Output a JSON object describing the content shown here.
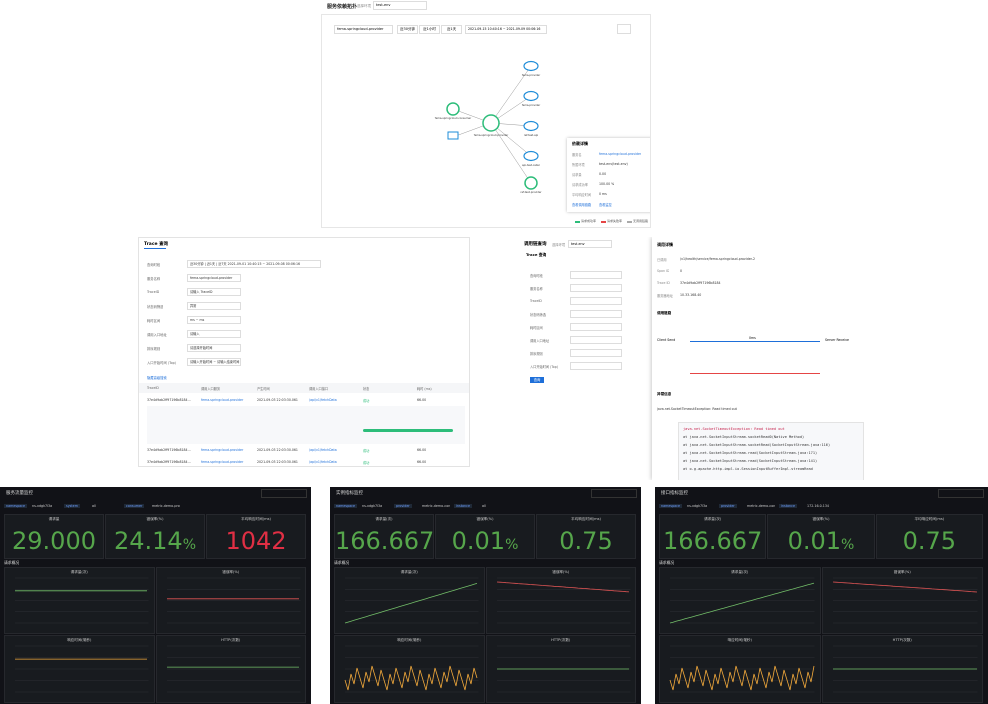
{
  "topology": {
    "title": "服务依赖拓扑",
    "env_label": "选择环境",
    "env": "test-env",
    "service": "fema-springcloud-provider",
    "ranges": [
      "近30分钟",
      "近1小时",
      "近1天"
    ],
    "time": "2021-09-15 10:40:16 ~ 2021-09-09 00:06:16",
    "nodes": [
      "fema-springcloud-consumer",
      "fema-springcloud-provider",
      "fema-provider",
      "fema-provider",
      "ref-test-api",
      "api-test-caller",
      "ref-test-provider"
    ],
    "detail": {
      "title": "依赖详情",
      "rows": [
        [
          "服务名",
          "fema-springcloud-provider"
        ],
        [
          "所属环境",
          "test-env(test-env)"
        ],
        [
          "请求量",
          "0.00"
        ],
        [
          "请求成功率",
          "100.00 %"
        ],
        [
          "平均响应时间",
          "0 ms"
        ]
      ],
      "actions": [
        "查看调用链路",
        "查看监控"
      ]
    },
    "legend": [
      "请求成功率",
      "请求失败率",
      "无调用链路"
    ]
  },
  "trace": {
    "title": "Trace 查询",
    "form": [
      [
        "查询时段",
        "近30分钟 | 近1天 | 近7天   2021-09-01 10:40:15 ~ 2021-09-08 00:06:16"
      ],
      [
        "服务名称",
        "fema-springcloud-provider"
      ],
      [
        "TraceID",
        "请输入 TraceID"
      ],
      [
        "状态码筛选",
        "异常"
      ],
      [
        "耗时区间",
        "ms ~ ms"
      ],
      [
        "调用入口地址",
        "请输入"
      ],
      [
        "排序规则",
        "请选择开始时间"
      ],
      [
        "入口开始时间 (Top)",
        "请输入开始时间  ~  请输入结束时间"
      ]
    ],
    "link": "隐藏高级搜索",
    "submit": "查询",
    "columns": [
      "TraceID",
      "调用入口服务",
      "产生时间",
      "调用入口接口",
      "状态",
      "耗时 (ms)"
    ],
    "rows": [
      [
        "37e4d9ab2ff97196b8184...",
        "fema-springcloud-provider",
        "2021-09-03 22:03:30.061",
        "/api/v1/fetchData",
        "成功",
        "66.00"
      ],
      [
        "37e4d9ab2ff97196b8184...",
        "fema-springcloud-provider",
        "2021-09-03 22:03:30.061",
        "/api/v1/fetchData",
        "成功",
        "66.00"
      ],
      [
        "37e4d9ab2ff97196b8184...",
        "fema-springcloud-provider",
        "2021-09-03 22:03:30.061",
        "/api/v1/fetchData",
        "成功",
        "66.00"
      ]
    ]
  },
  "chain": {
    "title": "调用链查询",
    "env_label": "选择环境",
    "env": "test-env",
    "tab": "Trace 查询",
    "form": [
      "查询时段",
      "服务名称",
      "TraceID",
      "状态码筛选",
      "耗时区间",
      "调用入口地址",
      "排序规则",
      "入口开始时间 (Top)"
    ],
    "submit": "查询",
    "detail": {
      "title": "调用详情",
      "rows": [
        [
          "已调用",
          "/v1/health/service/fema-springcloud-provider-2"
        ],
        [
          "Span ID",
          "0"
        ],
        [
          "Trace ID",
          "37e4d9ab2ff97196b8184"
        ],
        [
          "服务器地址",
          "10.33.168.40"
        ]
      ],
      "section": "调用链路",
      "client": "Client Send",
      "server": "Server Receive",
      "duration": "0ms",
      "exception_title": "异常信息",
      "exception": "java.net.SocketTimeoutException: Read timed out",
      "stack": [
        "java.net.SocketTimeoutException: Read timed out",
        "at java.net.SocketInputStream.socketRead0(Native Method)",
        "at java.net.SocketInputStream.socketRead(SocketInputStream.java:116)",
        "at java.net.SocketInputStream.read(SocketInputStream.java:171)",
        "at java.net.SocketInputStream.read(SocketInputStream.java:141)",
        "at o.g.apache.http.impl.io.SessionInputBufferImpl.streamRead"
      ]
    }
  },
  "dashboards": [
    {
      "title": "服务流量监控",
      "vars": [
        [
          "namespace",
          "ns-xdgk7l3a"
        ],
        [
          "system",
          "all"
        ],
        [
          "consumer",
          "metric-demo-provider"
        ]
      ],
      "stats": [
        {
          "label": "请求量",
          "value": "29.000",
          "unit": "",
          "color": "#56a64b"
        },
        {
          "label": "错误率(%)",
          "value": "24.14",
          "unit": "%",
          "color": "#56a64b"
        },
        {
          "label": "平均响应时间(ms)",
          "value": "1042",
          "unit": "",
          "color": "#e02f44"
        }
      ],
      "section": "请求概况",
      "panels": [
        "请求量(次)",
        "错误率(%)",
        "响应时间(毫秒)",
        "HTTP(次数)"
      ]
    },
    {
      "title": "实例指标监控",
      "vars": [
        [
          "namespace",
          "ns-xdgk7l3a"
        ],
        [
          "provider",
          "metric-demo-consumer"
        ],
        [
          "instance",
          "all"
        ]
      ],
      "stats": [
        {
          "label": "请求量(次)",
          "value": "166.667",
          "unit": "",
          "color": "#56a64b"
        },
        {
          "label": "错误率(%)",
          "value": "0.01",
          "unit": "%",
          "color": "#56a64b"
        },
        {
          "label": "平均响应时间(ms)",
          "value": "0.75",
          "unit": "",
          "color": "#56a64b"
        }
      ],
      "section": "请求概况",
      "panels": [
        "请求量(次)",
        "错误率(%)",
        "响应时间(毫秒)",
        "HTTP(次数)"
      ]
    },
    {
      "title": "接口指标监控",
      "vars": [
        [
          "namespace",
          "ns-xdgk7l3a"
        ],
        [
          "provider",
          "metric-demo-consumer"
        ],
        [
          "instance",
          "172.16.0.134"
        ]
      ],
      "stats": [
        {
          "label": "请求量(次)",
          "value": "166.667",
          "unit": "",
          "color": "#56a64b"
        },
        {
          "label": "错误率(%)",
          "value": "0.01",
          "unit": "%",
          "color": "#56a64b"
        },
        {
          "label": "平均响应时间(ms)",
          "value": "0.75",
          "unit": "",
          "color": "#56a64b"
        }
      ],
      "section": "请求概况",
      "panels": [
        "请求量(次)",
        "错误率(%)",
        "响应时间(毫秒)",
        "HTTP(次数)"
      ]
    }
  ]
}
